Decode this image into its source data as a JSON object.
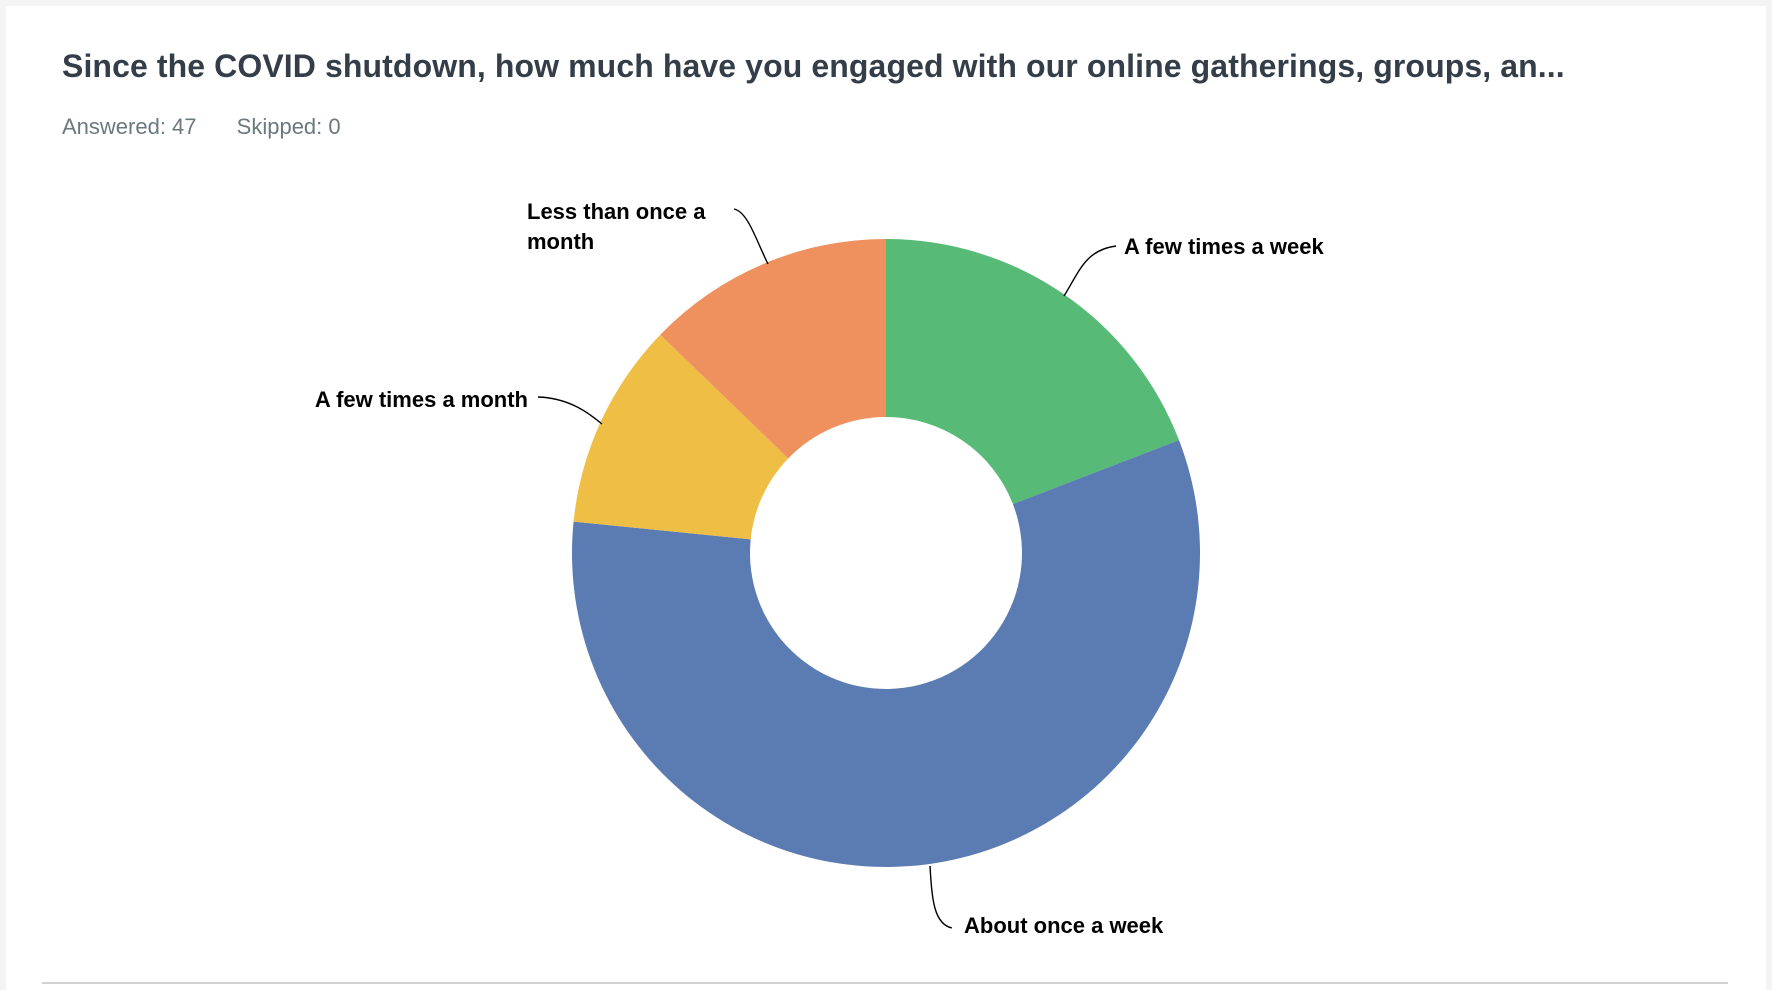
{
  "question": {
    "title": "Since the COVID shutdown, how much have you engaged with our online gatherings, groups, an...",
    "answered": "Answered: 47",
    "skipped": "Skipped: 0"
  },
  "chart_data": {
    "type": "pie",
    "donut": true,
    "title": "",
    "categories": [
      "A few times a week",
      "About once a week",
      "A few times a month",
      "Less than once a month"
    ],
    "values": [
      19.15,
      57.45,
      10.64,
      12.77
    ],
    "colors": [
      "#57bb77",
      "#5b7bb3",
      "#efbe45",
      "#ef915f"
    ],
    "legend": "none"
  }
}
